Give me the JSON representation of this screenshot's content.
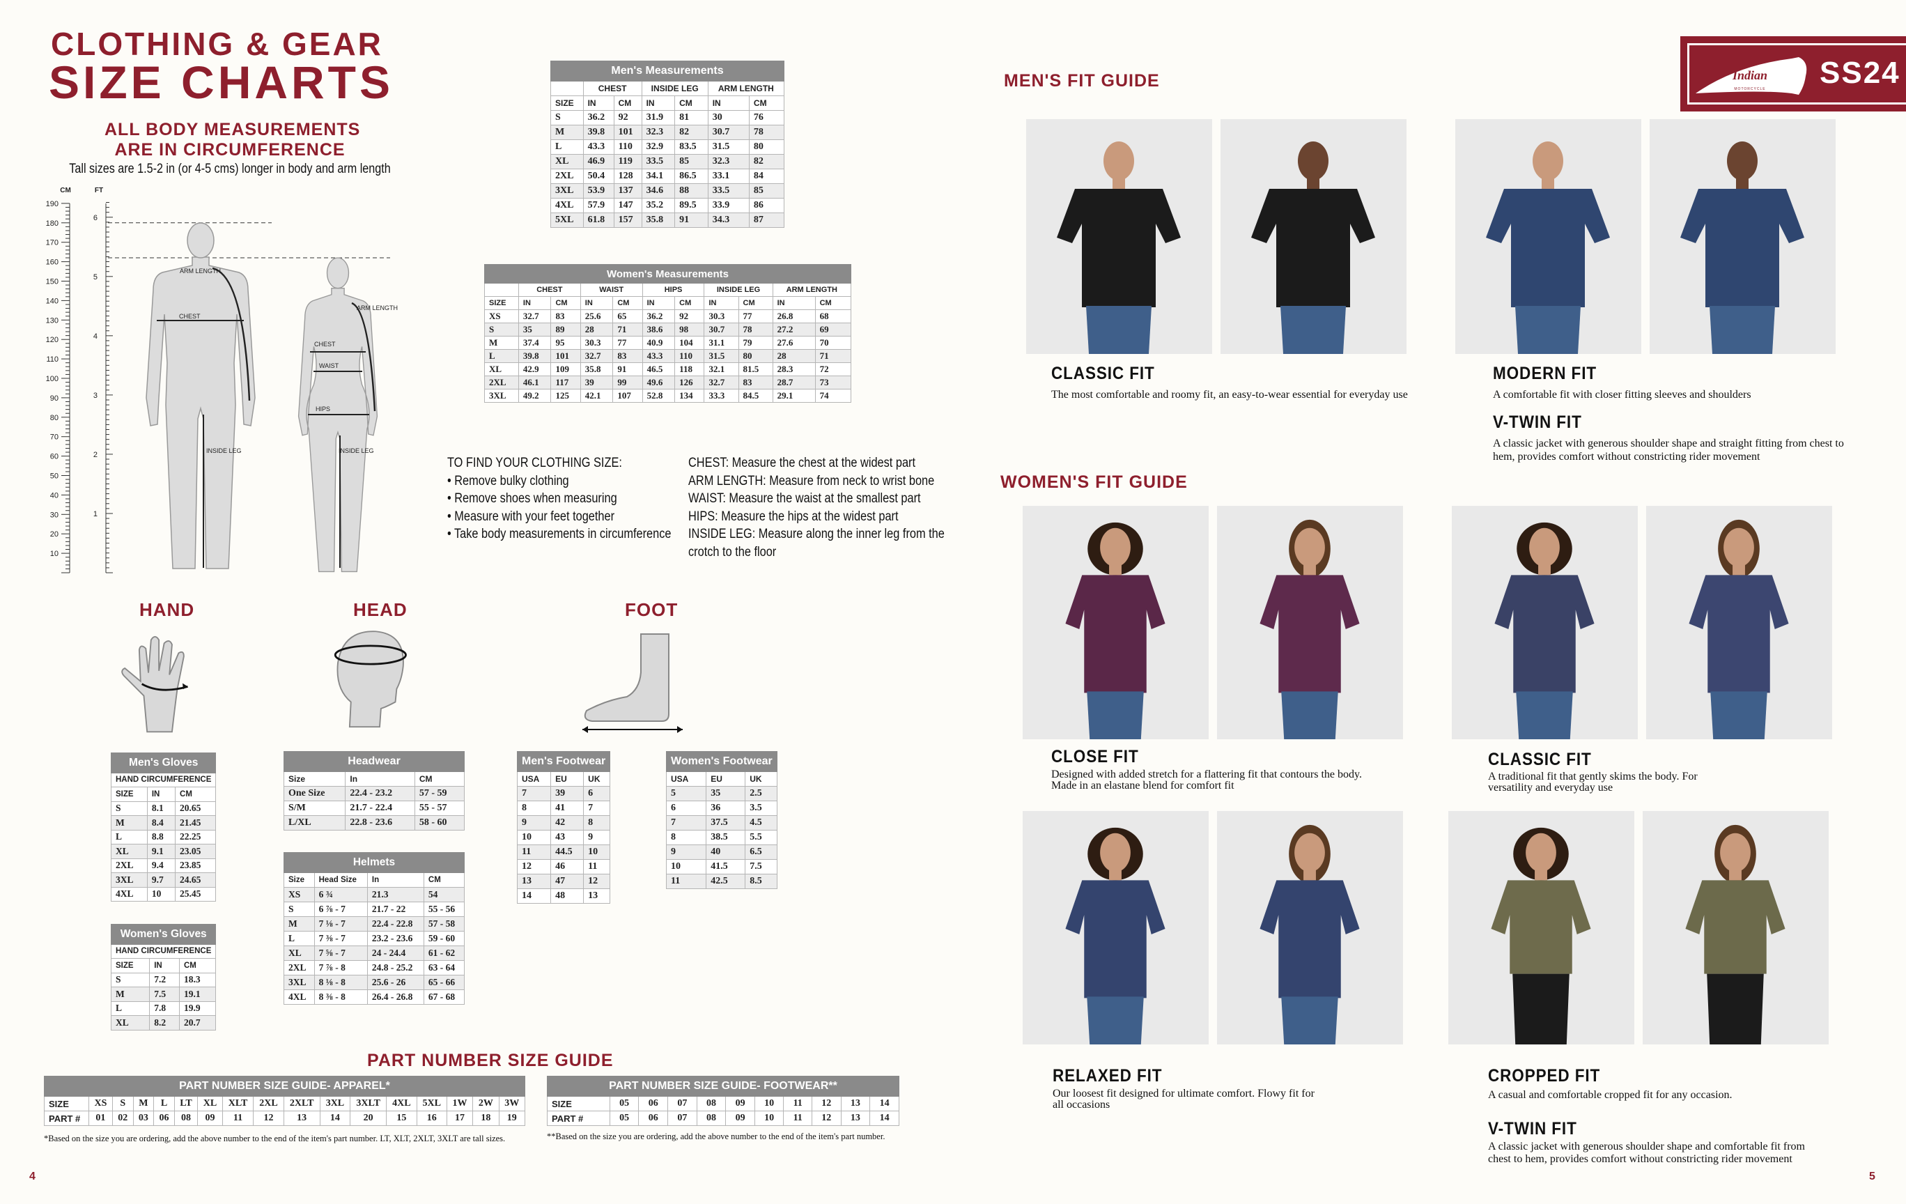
{
  "colors": {
    "accent": "#8e1f2d",
    "table_header": "#8a8a8a",
    "row_alt": "#ececec"
  },
  "left_page": {
    "title_line1": "CLOTHING & GEAR",
    "title_line2": "SIZE CHARTS",
    "subtitle_line1": "ALL BODY MEASUREMENTS",
    "subtitle_line2": "ARE IN CIRCUMFERENCE",
    "tall_note": "Tall sizes are 1.5-2 in (or 4-5 cms) longer in body and arm  length",
    "page_number": "4"
  },
  "body_diagram": {
    "cm_label": "CM",
    "ft_label": "FT",
    "cm_ticks": [
      "190",
      "180",
      "170",
      "160",
      "150",
      "140",
      "130",
      "120",
      "110",
      "100",
      "90",
      "80",
      "70",
      "60",
      "50",
      "40",
      "30",
      "20",
      "10"
    ],
    "ft_ticks": [
      "6",
      "5",
      "4",
      "3",
      "2",
      "1"
    ],
    "labels": {
      "chest": "CHEST",
      "arm_length": "ARM LENGTH",
      "inside_leg": "INSIDE LEG",
      "waist": "WAIST",
      "hips": "HIPS"
    }
  },
  "instructions": {
    "heading": "TO FIND YOUR CLOTHING SIZE:",
    "steps": [
      "• Remove bulky clothing",
      "• Remove shoes when measuring",
      "• Measure with your feet together",
      "• Take body measurements in circumference"
    ],
    "definitions": [
      "CHEST: Measure the chest at the widest part",
      "ARM LENGTH: Measure from neck to wrist bone",
      "WAIST: Measure the waist at the smallest part",
      "HIPS: Measure the hips at the widest part",
      "INSIDE LEG: Measure along the inner leg from the",
      "crotch to the floor"
    ]
  },
  "section_labels": {
    "hand": "HAND",
    "head": "HEAD",
    "foot": "FOOT",
    "part_number": "PART NUMBER SIZE GUIDE"
  },
  "tables": {
    "mens_measurements": {
      "title": "Men's Measurements",
      "groups": [
        "",
        "CHEST",
        "INSIDE LEG",
        "ARM LENGTH"
      ],
      "columns": [
        "SIZE",
        "IN",
        "CM",
        "IN",
        "CM",
        "IN",
        "CM"
      ],
      "rows": [
        [
          "S",
          "36.2",
          "92",
          "31.9",
          "81",
          "30",
          "76"
        ],
        [
          "M",
          "39.8",
          "101",
          "32.3",
          "82",
          "30.7",
          "78"
        ],
        [
          "L",
          "43.3",
          "110",
          "32.9",
          "83.5",
          "31.5",
          "80"
        ],
        [
          "XL",
          "46.9",
          "119",
          "33.5",
          "85",
          "32.3",
          "82"
        ],
        [
          "2XL",
          "50.4",
          "128",
          "34.1",
          "86.5",
          "33.1",
          "84"
        ],
        [
          "3XL",
          "53.9",
          "137",
          "34.6",
          "88",
          "33.5",
          "85"
        ],
        [
          "4XL",
          "57.9",
          "147",
          "35.2",
          "89.5",
          "33.9",
          "86"
        ],
        [
          "5XL",
          "61.8",
          "157",
          "35.8",
          "91",
          "34.3",
          "87"
        ]
      ]
    },
    "womens_measurements": {
      "title": "Women's Measurements",
      "groups": [
        "",
        "CHEST",
        "WAIST",
        "HIPS",
        "INSIDE LEG",
        "ARM LENGTH"
      ],
      "columns": [
        "SIZE",
        "IN",
        "CM",
        "IN",
        "CM",
        "IN",
        "CM",
        "IN",
        "CM",
        "IN",
        "CM"
      ],
      "rows": [
        [
          "XS",
          "32.7",
          "83",
          "25.6",
          "65",
          "36.2",
          "92",
          "30.3",
          "77",
          "26.8",
          "68"
        ],
        [
          "S",
          "35",
          "89",
          "28",
          "71",
          "38.6",
          "98",
          "30.7",
          "78",
          "27.2",
          "69"
        ],
        [
          "M",
          "37.4",
          "95",
          "30.3",
          "77",
          "40.9",
          "104",
          "31.1",
          "79",
          "27.6",
          "70"
        ],
        [
          "L",
          "39.8",
          "101",
          "32.7",
          "83",
          "43.3",
          "110",
          "31.5",
          "80",
          "28",
          "71"
        ],
        [
          "XL",
          "42.9",
          "109",
          "35.8",
          "91",
          "46.5",
          "118",
          "32.1",
          "81.5",
          "28.3",
          "72"
        ],
        [
          "2XL",
          "46.1",
          "117",
          "39",
          "99",
          "49.6",
          "126",
          "32.7",
          "83",
          "28.7",
          "73"
        ],
        [
          "3XL",
          "49.2",
          "125",
          "42.1",
          "107",
          "52.8",
          "134",
          "33.3",
          "84.5",
          "29.1",
          "74"
        ]
      ]
    },
    "mens_gloves": {
      "title": "Men's Gloves",
      "subtitle": "HAND CIRCUMFERENCE",
      "columns": [
        "SIZE",
        "IN",
        "CM"
      ],
      "rows": [
        [
          "S",
          "8.1",
          "20.65"
        ],
        [
          "M",
          "8.4",
          "21.45"
        ],
        [
          "L",
          "8.8",
          "22.25"
        ],
        [
          "XL",
          "9.1",
          "23.05"
        ],
        [
          "2XL",
          "9.4",
          "23.85"
        ],
        [
          "3XL",
          "9.7",
          "24.65"
        ],
        [
          "4XL",
          "10",
          "25.45"
        ]
      ]
    },
    "womens_gloves": {
      "title": "Women's Gloves",
      "subtitle": "HAND CIRCUMFERENCE",
      "columns": [
        "SIZE",
        "IN",
        "CM"
      ],
      "rows": [
        [
          "S",
          "7.2",
          "18.3"
        ],
        [
          "M",
          "7.5",
          "19.1"
        ],
        [
          "L",
          "7.8",
          "19.9"
        ],
        [
          "XL",
          "8.2",
          "20.7"
        ]
      ]
    },
    "headwear": {
      "title": "Headwear",
      "columns": [
        "Size",
        "In",
        "CM"
      ],
      "rows": [
        [
          "One Size",
          "22.4 - 23.2",
          "57 - 59"
        ],
        [
          "S/M",
          "21.7 - 22.4",
          "55 - 57"
        ],
        [
          "L/XL",
          "22.8 - 23.6",
          "58 - 60"
        ]
      ]
    },
    "helmets": {
      "title": "Helmets",
      "columns": [
        "Size",
        "Head Size",
        "In",
        "CM"
      ],
      "rows": [
        [
          "XS",
          "6 ¾",
          "21.3",
          "54"
        ],
        [
          "S",
          "6 ⅞ - 7",
          "21.7 - 22",
          "55 - 56"
        ],
        [
          "M",
          "7 ⅛ - 7",
          "22.4 - 22.8",
          "57 - 58"
        ],
        [
          "L",
          "7 ⅜ - 7",
          "23.2 - 23.6",
          "59 - 60"
        ],
        [
          "XL",
          "7 ⅝ - 7",
          "24 - 24.4",
          "61 - 62"
        ],
        [
          "2XL",
          "7 ⅞ - 8",
          "24.8 - 25.2",
          "63 - 64"
        ],
        [
          "3XL",
          "8 ⅛ - 8",
          "25.6 - 26",
          "65 - 66"
        ],
        [
          "4XL",
          "8 ⅜ - 8",
          "26.4 - 26.8",
          "67 - 68"
        ]
      ]
    },
    "mens_footwear": {
      "title": "Men's Footwear",
      "columns": [
        "USA",
        "EU",
        "UK"
      ],
      "rows": [
        [
          "7",
          "39",
          "6"
        ],
        [
          "8",
          "41",
          "7"
        ],
        [
          "9",
          "42",
          "8"
        ],
        [
          "10",
          "43",
          "9"
        ],
        [
          "11",
          "44.5",
          "10"
        ],
        [
          "12",
          "46",
          "11"
        ],
        [
          "13",
          "47",
          "12"
        ],
        [
          "14",
          "48",
          "13"
        ]
      ]
    },
    "womens_footwear": {
      "title": "Women's Footwear",
      "columns": [
        "USA",
        "EU",
        "UK"
      ],
      "rows": [
        [
          "5",
          "35",
          "2.5"
        ],
        [
          "6",
          "36",
          "3.5"
        ],
        [
          "7",
          "37.5",
          "4.5"
        ],
        [
          "8",
          "38.5",
          "5.5"
        ],
        [
          "9",
          "40",
          "6.5"
        ],
        [
          "10",
          "41.5",
          "7.5"
        ],
        [
          "11",
          "42.5",
          "8.5"
        ]
      ]
    },
    "part_apparel": {
      "title": "PART NUMBER SIZE GUIDE- APPAREL*",
      "rows": [
        [
          "SIZE",
          "XS",
          "S",
          "M",
          "L",
          "LT",
          "XL",
          "XLT",
          "2XL",
          "2XLT",
          "3XL",
          "3XLT",
          "4XL",
          "5XL",
          "1W",
          "2W",
          "3W"
        ],
        [
          "PART #",
          "01",
          "02",
          "03",
          "06",
          "08",
          "09",
          "11",
          "12",
          "13",
          "14",
          "20",
          "15",
          "16",
          "17",
          "18",
          "19"
        ]
      ]
    },
    "part_footwear": {
      "title": "PART NUMBER SIZE GUIDE- FOOTWEAR**",
      "rows": [
        [
          "SIZE",
          "05",
          "06",
          "07",
          "08",
          "09",
          "10",
          "11",
          "12",
          "13",
          "14"
        ],
        [
          "PART #",
          "05",
          "06",
          "07",
          "08",
          "09",
          "10",
          "11",
          "12",
          "13",
          "14"
        ]
      ]
    }
  },
  "footnotes": {
    "apparel": "*Based on the size you are ordering, add the above number to the end of the item's part number. LT, XLT, 2XLT, 3XLT are tall sizes.",
    "footwear": "**Based on the size you are ordering, add the above number to the end of the item's part number."
  },
  "right_page": {
    "logo": {
      "brand": "Indian",
      "brand_sub": "MOTORCYCLE",
      "season": "SS24"
    },
    "mens_heading": "MEN'S FIT GUIDE",
    "womens_heading": "WOMEN'S FIT GUIDE",
    "page_number": "5",
    "mens_fits": [
      {
        "name": "CLASSIC FIT",
        "desc": "The most comfortable and roomy fit, an easy-to-wear essential for everyday use"
      },
      {
        "name": "MODERN FIT",
        "desc": "A comfortable fit with closer fitting sleeves and shoulders"
      },
      {
        "name": "V-TWIN FIT",
        "desc": "A classic jacket with generous shoulder shape and straight fitting from chest to hem, provides comfort without constricting rider movement"
      }
    ],
    "womens_fits": [
      {
        "name": "CLOSE FIT",
        "desc": "Designed with added stretch for a flattering fit that contours the body. Made in an elastane blend for comfort fit"
      },
      {
        "name": "CLASSIC FIT",
        "desc": "A traditional fit that gently skims the body. For versatility and everyday use"
      },
      {
        "name": "RELAXED FIT",
        "desc": "Our loosest fit designed for ultimate comfort. Flowy fit for all occasions"
      },
      {
        "name": "CROPPED FIT",
        "desc": "A casual and comfortable cropped fit for any occasion."
      },
      {
        "name": "V-TWIN FIT",
        "desc": "A classic jacket with generous shoulder shape and comfortable fit from chest to hem, provides comfort without constricting rider movement"
      }
    ],
    "photo_shirt_colors": {
      "mens": [
        "#1b1b1b",
        "#1b1b1b",
        "#2f4670",
        "#2f4670"
      ],
      "womens_row1": [
        "#5a2748",
        "#5e2a4c",
        "#3a4266",
        "#3c4670"
      ],
      "womens_row2": [
        "#34446e",
        "#34446e",
        "#6e6b4c",
        "#6c6a4b"
      ]
    }
  }
}
